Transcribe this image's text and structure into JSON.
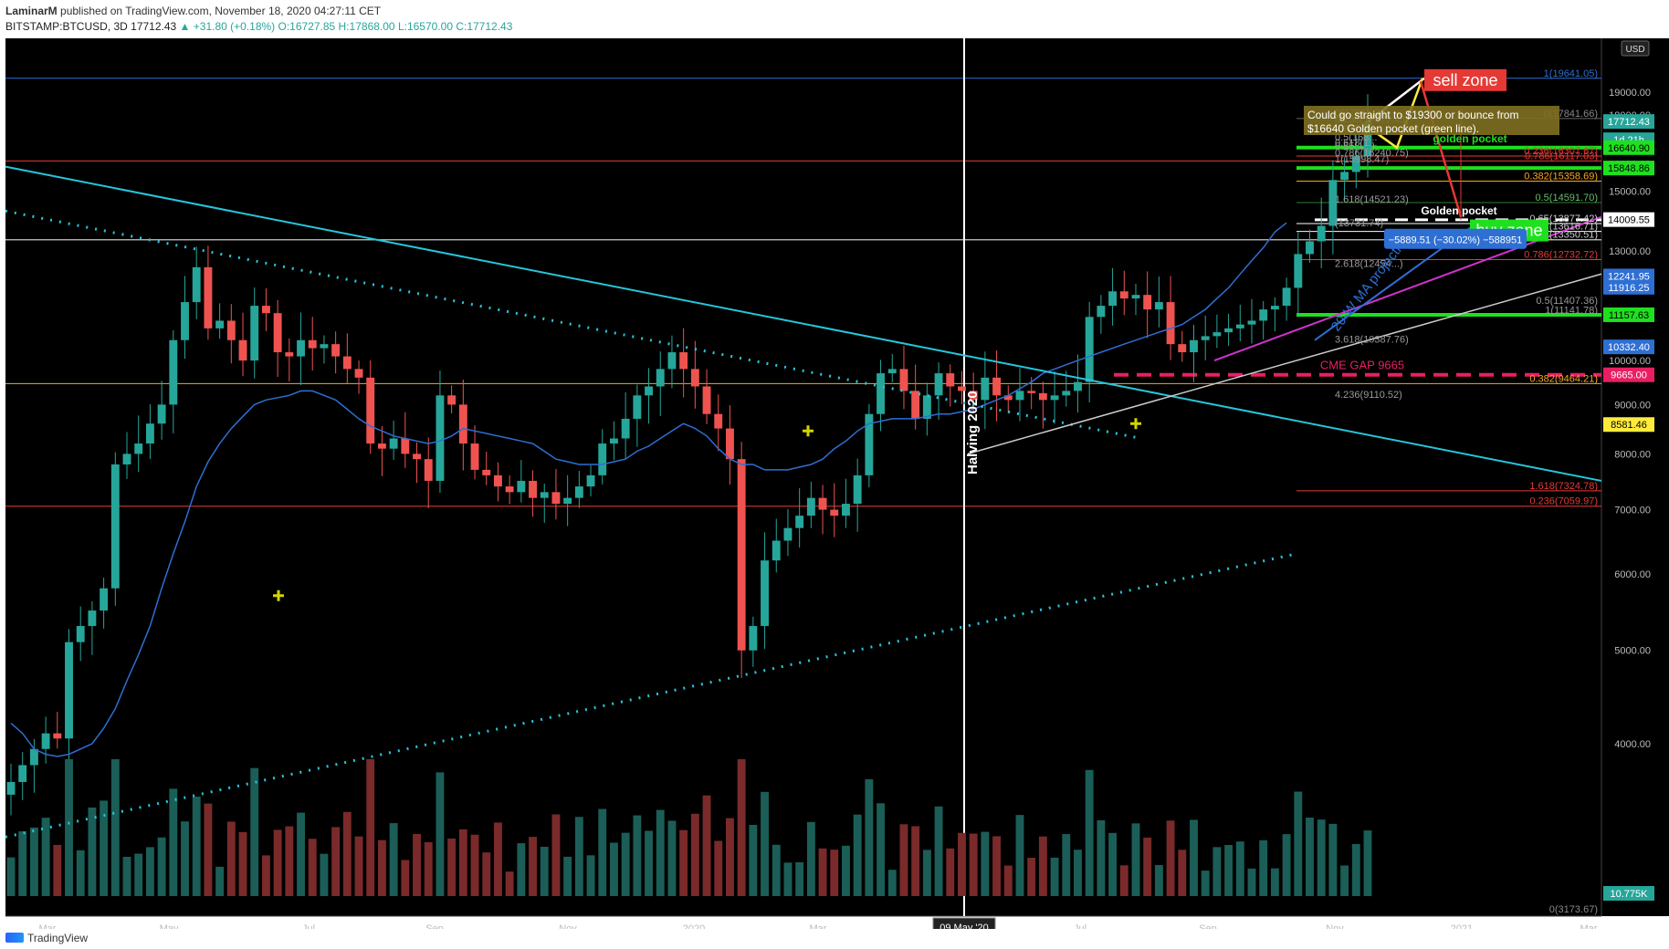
{
  "header": {
    "author": "LaminarM",
    "published": "published on TradingView.com, November 18, 2020 04:27:11 CET",
    "symbol": "BITSTAMP:BTCUSD, 3D",
    "last": "17712.43",
    "change": "▲ +31.80 (+0.18%)",
    "ohlc": "O:16727.85 H:17868.00 L:16570.00 C:17712.43"
  },
  "footer": {
    "brand": "TradingView"
  },
  "colors": {
    "background": "#000000",
    "up": "#26a69a",
    "down": "#ef5350",
    "ma": "#2e6fd4",
    "trendline": "#26c6da",
    "gold": "#ffeb3b",
    "green_level": "#1ee01e"
  },
  "chart_data": {
    "type": "candlestick",
    "currency": "USD",
    "x_tick_labels": [
      "Mar",
      "May",
      "Jul",
      "Sep",
      "Nov",
      "2020",
      "Mar",
      "May",
      "Jul",
      "Sep",
      "Nov",
      "2021",
      "Mar"
    ],
    "cursor_date_label": "09 May '20",
    "y_axis": {
      "scale": "log",
      "range": [
        3173.67,
        20500
      ],
      "tick_labels": [
        "19000.00",
        "18000.00",
        "17000.00",
        "16000.00",
        "15000.00",
        "13000.00",
        "10000.00",
        "9000.00",
        "8000.00",
        "7000.00",
        "6000.00",
        "5000.00",
        "4000.00"
      ],
      "price_badges": [
        {
          "label": "17712.43",
          "kind": "last"
        },
        {
          "label": "1d 21h",
          "kind": "countdown"
        },
        {
          "label": "16640.90",
          "kind": "green"
        },
        {
          "label": "15848.86",
          "kind": "green"
        },
        {
          "label": "14009.55",
          "kind": "white"
        },
        {
          "label": "12241.95",
          "kind": "blue"
        },
        {
          "label": "11916.25",
          "kind": "blue"
        },
        {
          "label": "11157.63",
          "kind": "green"
        },
        {
          "label": "10332.40",
          "kind": "blue"
        },
        {
          "label": "9665.00",
          "kind": "red"
        },
        {
          "label": "8581.46",
          "kind": "yellow"
        },
        {
          "label": "10.775K",
          "kind": "volume"
        }
      ],
      "currency_badge": "USD"
    },
    "fib_labels_right": [
      "1(19641.05)",
      "0(17841.66)",
      "0.236(16307.67)",
      "0.786(16117.03)",
      "0.382(15358.69)",
      "0.5(14591.70)",
      "0.65(13877.42)",
      "(13616.71)",
      "(13350.51)",
      "0.786(12732.72)",
      "0.5(11407.36)",
      "1(11141.78)",
      "0.382(9464.21)",
      "1.618(7324.78)",
      "0.236(7059.97)",
      "0(3173.67)"
    ],
    "fib_labels_mid": [
      "0(17865.20)",
      "0.236(17577.45)",
      "0.382(17...",
      "0.5(168...",
      "0.618(1...",
      "0.65(1...)",
      "0.786(16240.75)",
      "1(15998.47)",
      "1.618(14521.23)",
      "(13731.74)",
      "2.618(12454...)",
      "3.618(10387.76)",
      "4.236(9110.52)"
    ],
    "annotations": {
      "sell_zone": "sell zone",
      "buy_zone": "buy zone",
      "golden_pocket_upper": "golden pocket",
      "golden_pocket_lower": "Golden pocket",
      "cme_gap": "CME GAP 9665",
      "halving": "Halving 2020",
      "ma_projection": "20-W MA projection",
      "note": "Could go straight to $19300 or bounce from $16640 Golden pocket (green line).",
      "measure": "−5889.51 (−30.02%) −588951"
    },
    "series": [
      {
        "name": "BTCUSD",
        "kind": "candles",
        "closes": [
          3650,
          3800,
          3950,
          4100,
          4050,
          5100,
          5300,
          5500,
          5800,
          7800,
          8000,
          8200,
          8600,
          9000,
          10500,
          11500,
          12500,
          10800,
          11000,
          10500,
          10000,
          11400,
          11200,
          10200,
          10100,
          10500,
          10300,
          10400,
          10100,
          9800,
          9600,
          8200,
          8100,
          8300,
          8000,
          7900,
          7500,
          9200,
          9000,
          8200,
          7700,
          7600,
          7400,
          7300,
          7500,
          7200,
          7300,
          7100,
          7200,
          7400,
          7600,
          8200,
          8300,
          8700,
          9200,
          9400,
          9800,
          10200,
          9800,
          9400,
          8800,
          8500,
          7900,
          5000,
          5300,
          6200,
          6500,
          6700,
          6900,
          7200,
          7000,
          6900,
          7100,
          7600,
          8800,
          9700,
          9800,
          9300,
          8700,
          9200,
          9700,
          9400,
          9300,
          9100,
          9600,
          9200,
          9100,
          9300,
          9250,
          9100,
          9200,
          9300,
          9500,
          11100,
          11400,
          11800,
          11600,
          11700,
          11300,
          11500,
          10400,
          10200,
          10500,
          10600,
          10700,
          10800,
          10900,
          11000,
          11300,
          11400,
          11900,
          12900,
          13300,
          13800,
          15400,
          15700,
          16300,
          17712
        ]
      },
      {
        "name": "20-W MA",
        "kind": "line",
        "values": [
          4200,
          4100,
          3950,
          3900,
          3880,
          3900,
          3950,
          4000,
          4150,
          4350,
          4650,
          4950,
          5300,
          5800,
          6300,
          6800,
          7400,
          7850,
          8200,
          8500,
          8750,
          9000,
          9100,
          9150,
          9200,
          9300,
          9300,
          9200,
          9100,
          8900,
          8700,
          8550,
          8450,
          8350,
          8300,
          8250,
          8200,
          8250,
          8350,
          8500,
          8450,
          8400,
          8350,
          8300,
          8250,
          8200,
          8050,
          7900,
          7850,
          7800,
          7800,
          7800,
          7850,
          7900,
          8050,
          8150,
          8300,
          8450,
          8600,
          8500,
          8350,
          8100,
          7900,
          7800,
          7800,
          7700,
          7700,
          7700,
          7750,
          7800,
          7900,
          8100,
          8250,
          8450,
          8600,
          8650,
          8700,
          8700,
          8700,
          8750,
          8800,
          8800,
          8850,
          8900,
          9000,
          9100,
          9200,
          9350,
          9500,
          9700,
          9800,
          9900,
          10000,
          10100,
          10200,
          10300,
          10400,
          10500,
          10600,
          10700,
          10800,
          10900,
          11100,
          11300,
          11600,
          11900,
          12300,
          12700,
          13100,
          13600,
          13900
        ]
      }
    ]
  }
}
